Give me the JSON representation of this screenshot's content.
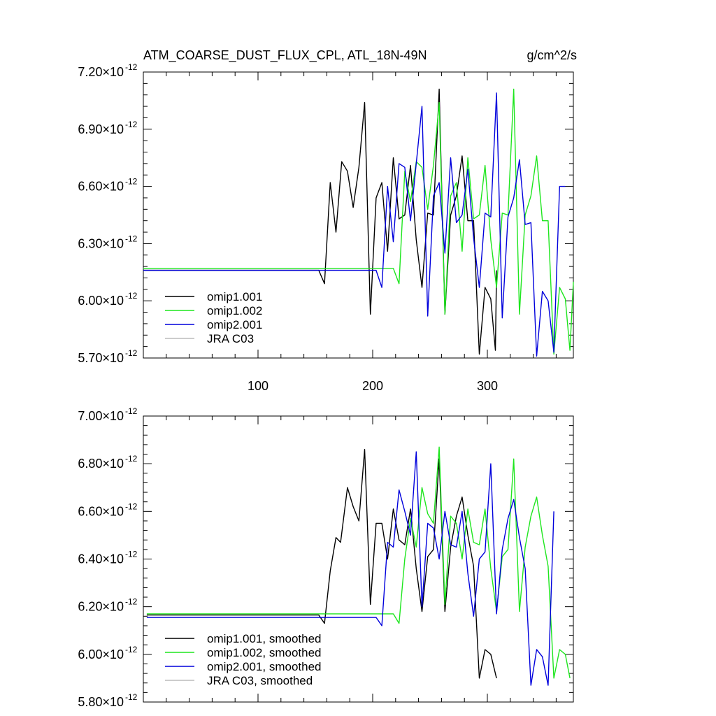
{
  "header": {
    "title": "ATM_COARSE_DUST_FLUX_CPL, ATL_18N-49N",
    "units": "g/cm^2/s"
  },
  "colors": {
    "omip1.001": "#000000",
    "omip1.002": "#1ee61e",
    "omip2.001": "#0000dc",
    "JRA C03": "#bbbbbb"
  },
  "chart_data": [
    {
      "type": "line",
      "title": "ATM_COARSE_DUST_FLUX_CPL, ATL_18N-49N",
      "units": "g/cm^2/s",
      "xlim": [
        0,
        375
      ],
      "ylim": [
        5.7e-12,
        7.2e-12
      ],
      "x_ticks": [
        100,
        200,
        300
      ],
      "x_tick_labels": [
        "100",
        "200",
        "300"
      ],
      "y_ticks": [
        5.7e-12,
        6e-12,
        6.3e-12,
        6.6e-12,
        6.9e-12,
        7.2e-12
      ],
      "y_tick_labels": [
        {
          "mantissa": "5.70",
          "exp": "-12"
        },
        {
          "mantissa": "6.00",
          "exp": "-12"
        },
        {
          "mantissa": "6.30",
          "exp": "-12"
        },
        {
          "mantissa": "6.60",
          "exp": "-12"
        },
        {
          "mantissa": "6.90",
          "exp": "-12"
        },
        {
          "mantissa": "7.20",
          "exp": "-12"
        }
      ],
      "legend": [
        "omip1.001",
        "omip1.002",
        "omip2.001",
        "JRA C03"
      ],
      "legend_position": "bottom-left",
      "series": [
        {
          "name": "omip1.001",
          "points": [
            [
              0,
              6.16
            ],
            [
              153,
              6.16
            ],
            [
              158,
              6.09
            ],
            [
              163,
              6.62
            ],
            [
              168,
              6.36
            ],
            [
              173,
              6.73
            ],
            [
              178,
              6.68
            ],
            [
              183,
              6.49
            ],
            [
              188,
              6.7
            ],
            [
              193,
              7.04
            ],
            [
              198,
              5.93
            ],
            [
              203,
              6.54
            ],
            [
              208,
              6.62
            ],
            [
              213,
              6.26
            ],
            [
              218,
              6.75
            ],
            [
              223,
              6.43
            ],
            [
              228,
              6.45
            ],
            [
              233,
              6.71
            ],
            [
              238,
              6.32
            ],
            [
              243,
              6.07
            ],
            [
              248,
              6.46
            ],
            [
              253,
              6.45
            ],
            [
              258,
              7.11
            ],
            [
              263,
              5.93
            ],
            [
              268,
              6.45
            ],
            [
              273,
              6.55
            ],
            [
              278,
              6.76
            ],
            [
              283,
              6.42
            ],
            [
              288,
              6.42
            ],
            [
              293,
              5.72
            ],
            [
              298,
              6.07
            ],
            [
              303,
              6.01
            ],
            [
              307,
              5.74
            ],
            [
              308,
              6.16
            ]
          ]
        },
        {
          "name": "omip1.002",
          "points": [
            [
              0,
              6.17
            ],
            [
              218,
              6.17
            ],
            [
              223,
              6.09
            ],
            [
              228,
              6.68
            ],
            [
              233,
              6.52
            ],
            [
              238,
              6.73
            ],
            [
              243,
              6.7
            ],
            [
              248,
              6.48
            ],
            [
              253,
              6.71
            ],
            [
              258,
              7.04
            ],
            [
              263,
              5.93
            ],
            [
              268,
              6.55
            ],
            [
              273,
              6.62
            ],
            [
              278,
              6.26
            ],
            [
              283,
              6.75
            ],
            [
              288,
              6.43
            ],
            [
              293,
              6.45
            ],
            [
              298,
              6.71
            ],
            [
              303,
              6.32
            ],
            [
              308,
              6.07
            ],
            [
              313,
              6.46
            ],
            [
              318,
              6.45
            ],
            [
              323,
              7.11
            ],
            [
              328,
              5.93
            ],
            [
              333,
              6.45
            ],
            [
              338,
              6.55
            ],
            [
              343,
              6.76
            ],
            [
              348,
              6.42
            ],
            [
              353,
              6.42
            ],
            [
              358,
              5.72
            ],
            [
              363,
              6.07
            ],
            [
              368,
              6.01
            ],
            [
              372,
              5.74
            ],
            [
              375,
              6.1
            ]
          ]
        },
        {
          "name": "omip2.001",
          "points": [
            [
              0,
              6.16
            ],
            [
              203,
              6.16
            ],
            [
              208,
              6.07
            ],
            [
              213,
              6.6
            ],
            [
              218,
              6.31
            ],
            [
              223,
              6.72
            ],
            [
              228,
              6.7
            ],
            [
              233,
              6.42
            ],
            [
              238,
              6.72
            ],
            [
              243,
              7.02
            ],
            [
              248,
              5.92
            ],
            [
              253,
              6.55
            ],
            [
              258,
              6.62
            ],
            [
              263,
              6.25
            ],
            [
              268,
              6.75
            ],
            [
              273,
              6.41
            ],
            [
              278,
              6.45
            ],
            [
              283,
              6.69
            ],
            [
              288,
              6.33
            ],
            [
              293,
              6.07
            ],
            [
              298,
              6.46
            ],
            [
              303,
              6.44
            ],
            [
              308,
              7.09
            ],
            [
              313,
              5.91
            ],
            [
              318,
              6.44
            ],
            [
              323,
              6.54
            ],
            [
              328,
              6.74
            ],
            [
              333,
              6.4
            ],
            [
              338,
              6.41
            ],
            [
              343,
              5.71
            ],
            [
              348,
              6.05
            ],
            [
              353,
              6.0
            ],
            [
              358,
              5.73
            ],
            [
              363,
              6.6
            ],
            [
              368,
              6.6
            ]
          ]
        },
        {
          "name": "JRA C03",
          "points": []
        }
      ]
    },
    {
      "type": "line",
      "xlim": [
        0,
        375
      ],
      "ylim": [
        5.8e-12,
        7e-12
      ],
      "x_ticks": [
        100,
        200,
        300
      ],
      "y_ticks": [
        5.8e-12,
        6e-12,
        6.2e-12,
        6.4e-12,
        6.6e-12,
        6.8e-12,
        7e-12
      ],
      "y_tick_labels": [
        {
          "mantissa": "5.80",
          "exp": "-12"
        },
        {
          "mantissa": "6.00",
          "exp": "-12"
        },
        {
          "mantissa": "6.20",
          "exp": "-12"
        },
        {
          "mantissa": "6.40",
          "exp": "-12"
        },
        {
          "mantissa": "6.60",
          "exp": "-12"
        },
        {
          "mantissa": "6.80",
          "exp": "-12"
        },
        {
          "mantissa": "7.00",
          "exp": "-12"
        }
      ],
      "legend": [
        "omip1.001, smoothed",
        "omip1.002, smoothed",
        "omip2.001, smoothed",
        "JRA C03, smoothed"
      ],
      "legend_position": "bottom-left",
      "series": [
        {
          "name": "omip1.001, smoothed",
          "points": [
            [
              3,
              6.165
            ],
            [
              153,
              6.165
            ],
            [
              158,
              6.13
            ],
            [
              163,
              6.35
            ],
            [
              168,
              6.49
            ],
            [
              172,
              6.47
            ],
            [
              178,
              6.7
            ],
            [
              183,
              6.62
            ],
            [
              188,
              6.56
            ],
            [
              193,
              6.86
            ],
            [
              198,
              6.21
            ],
            [
              203,
              6.55
            ],
            [
              208,
              6.55
            ],
            [
              213,
              6.4
            ],
            [
              218,
              6.61
            ],
            [
              223,
              6.48
            ],
            [
              228,
              6.46
            ],
            [
              233,
              6.61
            ],
            [
              238,
              6.36
            ],
            [
              243,
              6.18
            ],
            [
              248,
              6.41
            ],
            [
              253,
              6.44
            ],
            [
              258,
              6.82
            ],
            [
              263,
              6.18
            ],
            [
              268,
              6.45
            ],
            [
              273,
              6.58
            ],
            [
              278,
              6.66
            ],
            [
              283,
              6.5
            ],
            [
              288,
              6.37
            ],
            [
              293,
              5.9
            ],
            [
              298,
              6.02
            ],
            [
              303,
              6.0
            ],
            [
              308,
              5.9
            ]
          ]
        },
        {
          "name": "omip1.002, smoothed",
          "points": [
            [
              3,
              6.17
            ],
            [
              213,
              6.17
            ],
            [
              218,
              6.17
            ],
            [
              223,
              6.13
            ],
            [
              228,
              6.4
            ],
            [
              233,
              6.57
            ],
            [
              238,
              6.45
            ],
            [
              243,
              6.7
            ],
            [
              248,
              6.59
            ],
            [
              253,
              6.55
            ],
            [
              258,
              6.87
            ],
            [
              263,
              6.21
            ],
            [
              268,
              6.58
            ],
            [
              273,
              6.55
            ],
            [
              278,
              6.4
            ],
            [
              283,
              6.61
            ],
            [
              288,
              6.47
            ],
            [
              293,
              6.46
            ],
            [
              298,
              6.61
            ],
            [
              303,
              6.36
            ],
            [
              308,
              6.18
            ],
            [
              313,
              6.41
            ],
            [
              318,
              6.44
            ],
            [
              323,
              6.82
            ],
            [
              328,
              6.18
            ],
            [
              333,
              6.45
            ],
            [
              338,
              6.58
            ],
            [
              343,
              6.66
            ],
            [
              348,
              6.5
            ],
            [
              353,
              6.37
            ],
            [
              358,
              5.9
            ],
            [
              363,
              6.02
            ],
            [
              368,
              6.0
            ],
            [
              372,
              5.9
            ]
          ]
        },
        {
          "name": "omip2.001, smoothed",
          "points": [
            [
              3,
              6.155
            ],
            [
              198,
              6.155
            ],
            [
              203,
              6.155
            ],
            [
              208,
              6.12
            ],
            [
              213,
              6.47
            ],
            [
              218,
              6.45
            ],
            [
              223,
              6.69
            ],
            [
              228,
              6.6
            ],
            [
              233,
              6.5
            ],
            [
              238,
              6.85
            ],
            [
              243,
              6.2
            ],
            [
              248,
              6.55
            ],
            [
              253,
              6.53
            ],
            [
              258,
              6.4
            ],
            [
              263,
              6.6
            ],
            [
              268,
              6.46
            ],
            [
              273,
              6.45
            ],
            [
              278,
              6.6
            ],
            [
              283,
              6.34
            ],
            [
              288,
              6.16
            ],
            [
              293,
              6.4
            ],
            [
              298,
              6.43
            ],
            [
              303,
              6.8
            ],
            [
              308,
              6.17
            ],
            [
              313,
              6.44
            ],
            [
              318,
              6.57
            ],
            [
              323,
              6.65
            ],
            [
              328,
              6.49
            ],
            [
              333,
              6.36
            ],
            [
              338,
              5.87
            ],
            [
              343,
              6.02
            ],
            [
              348,
              5.99
            ],
            [
              353,
              5.87
            ],
            [
              358,
              6.6
            ]
          ]
        },
        {
          "name": "JRA C03, smoothed",
          "points": []
        }
      ]
    }
  ]
}
